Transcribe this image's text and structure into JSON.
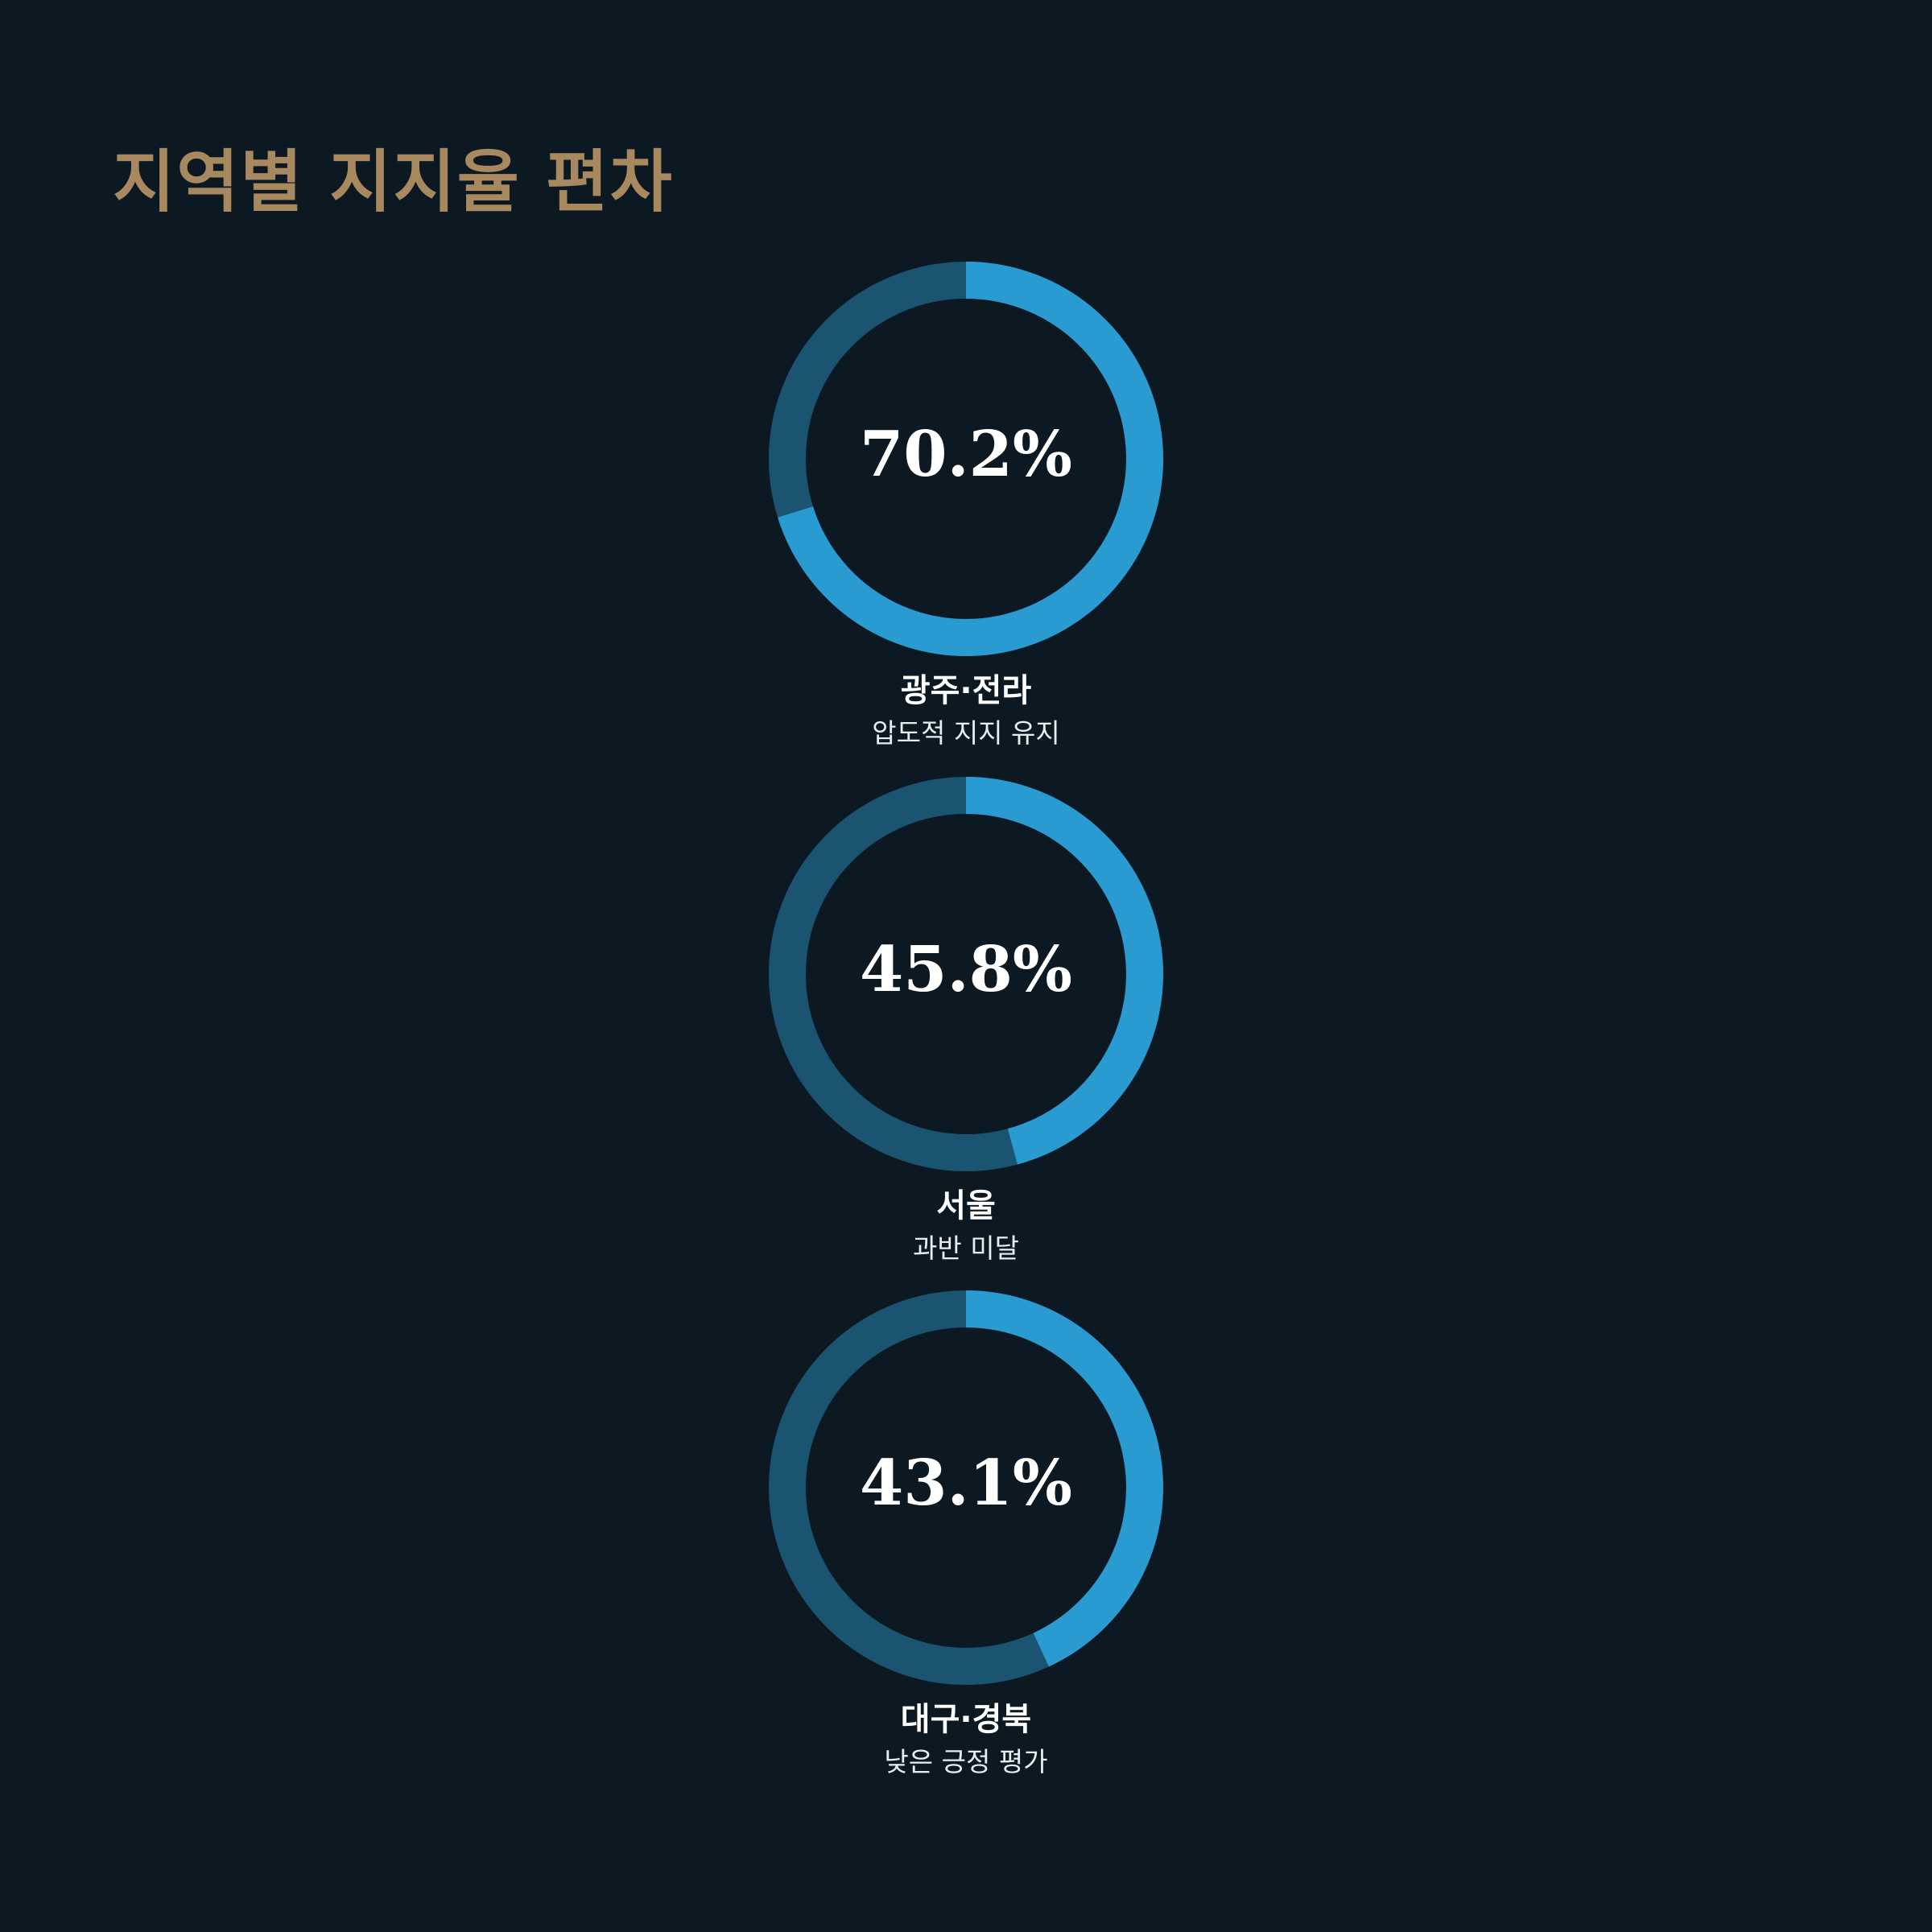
{
  "chart_data": {
    "type": "pie",
    "title": "지역별 지지율 편차",
    "rings": [
      {
        "value": 70.2,
        "label": "70.2%",
        "name": "광주·전라",
        "note": "압도적 지지 유지"
      },
      {
        "value": 45.8,
        "label": "45.8%",
        "name": "서울",
        "note": "과반 미달"
      },
      {
        "value": 43.1,
        "label": "43.1%",
        "name": "대구·경북",
        "note": "낮은 긍정 평가"
      }
    ],
    "max": 100,
    "colors": {
      "fill": "#2a9bd0",
      "track": "#1a5470",
      "background": "#0c1922",
      "title": "#a8885e"
    }
  }
}
